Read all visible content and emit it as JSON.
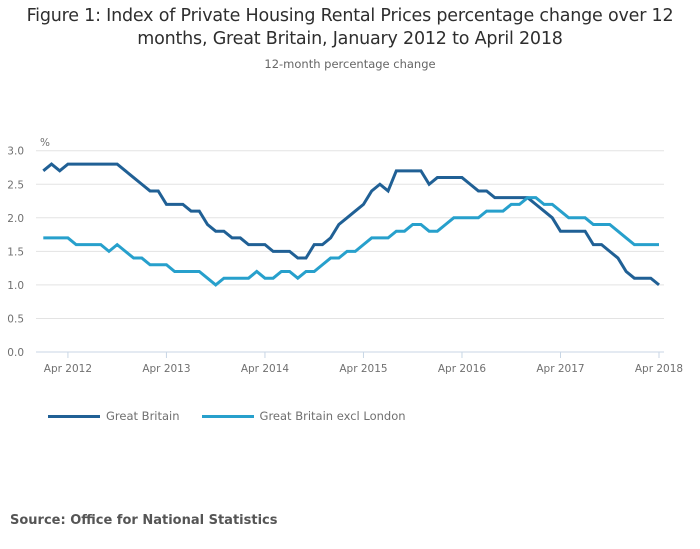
{
  "header": {
    "title_line1": "Figure 1: Index of Private Housing Rental Prices percentage change over 12",
    "title_line2": "months, Great Britain, January 2012 to April 2018",
    "subtitle": "12-month percentage change"
  },
  "footer": {
    "source": "Source: Office for National Statistics"
  },
  "chart_data": {
    "type": "line",
    "title": "Figure 1: Index of Private Housing Rental Prices percentage change over 12 months, Great Britain, January 2012 to April 2018",
    "subtitle": "12-month percentage change",
    "xlabel": "",
    "ylabel": "%",
    "x_start": "Jan 2012",
    "x_end": "Apr 2018",
    "x_unit": "month",
    "ylim": [
      0,
      3.0
    ],
    "yticks": [
      0.0,
      0.5,
      1.0,
      1.5,
      2.0,
      2.5,
      3.0
    ],
    "ytick_labels": [
      "0.0",
      "0.5",
      "1.0",
      "1.5",
      "2.0",
      "2.5",
      "3.0"
    ],
    "xticks": [
      {
        "label": "Apr 2012",
        "month_index": 3
      },
      {
        "label": "Apr 2013",
        "month_index": 15
      },
      {
        "label": "Apr 2014",
        "month_index": 27
      },
      {
        "label": "Apr 2015",
        "month_index": 39
      },
      {
        "label": "Apr 2016",
        "month_index": 51
      },
      {
        "label": "Apr 2017",
        "month_index": 63
      },
      {
        "label": "Apr 2018",
        "month_index": 75
      }
    ],
    "grid": true,
    "legend_position": "bottom-left",
    "series": [
      {
        "name": "Great Britain",
        "color": "#206095",
        "values": [
          2.7,
          2.8,
          2.7,
          2.8,
          2.8,
          2.8,
          2.8,
          2.8,
          2.8,
          2.8,
          2.7,
          2.6,
          2.5,
          2.4,
          2.4,
          2.2,
          2.2,
          2.2,
          2.1,
          2.1,
          1.9,
          1.8,
          1.8,
          1.7,
          1.7,
          1.6,
          1.6,
          1.6,
          1.5,
          1.5,
          1.5,
          1.4,
          1.4,
          1.6,
          1.6,
          1.7,
          1.9,
          2.0,
          2.1,
          2.2,
          2.4,
          2.5,
          2.4,
          2.7,
          2.7,
          2.7,
          2.7,
          2.5,
          2.6,
          2.6,
          2.6,
          2.6,
          2.5,
          2.4,
          2.4,
          2.3,
          2.3,
          2.3,
          2.3,
          2.3,
          2.2,
          2.1,
          2.0,
          1.8,
          1.8,
          1.8,
          1.8,
          1.6,
          1.6,
          1.5,
          1.4,
          1.2,
          1.1,
          1.1,
          1.1,
          1.0
        ]
      },
      {
        "name": "Great Britain excl London",
        "color": "#27a0cc",
        "values": [
          1.7,
          1.7,
          1.7,
          1.7,
          1.6,
          1.6,
          1.6,
          1.6,
          1.5,
          1.6,
          1.5,
          1.4,
          1.4,
          1.3,
          1.3,
          1.3,
          1.2,
          1.2,
          1.2,
          1.2,
          1.1,
          1.0,
          1.1,
          1.1,
          1.1,
          1.1,
          1.2,
          1.1,
          1.1,
          1.2,
          1.2,
          1.1,
          1.2,
          1.2,
          1.3,
          1.4,
          1.4,
          1.5,
          1.5,
          1.6,
          1.7,
          1.7,
          1.7,
          1.8,
          1.8,
          1.9,
          1.9,
          1.8,
          1.8,
          1.9,
          2.0,
          2.0,
          2.0,
          2.0,
          2.1,
          2.1,
          2.1,
          2.2,
          2.2,
          2.3,
          2.3,
          2.2,
          2.2,
          2.1,
          2.0,
          2.0,
          2.0,
          1.9,
          1.9,
          1.9,
          1.8,
          1.7,
          1.6,
          1.6,
          1.6,
          1.6
        ]
      }
    ]
  }
}
